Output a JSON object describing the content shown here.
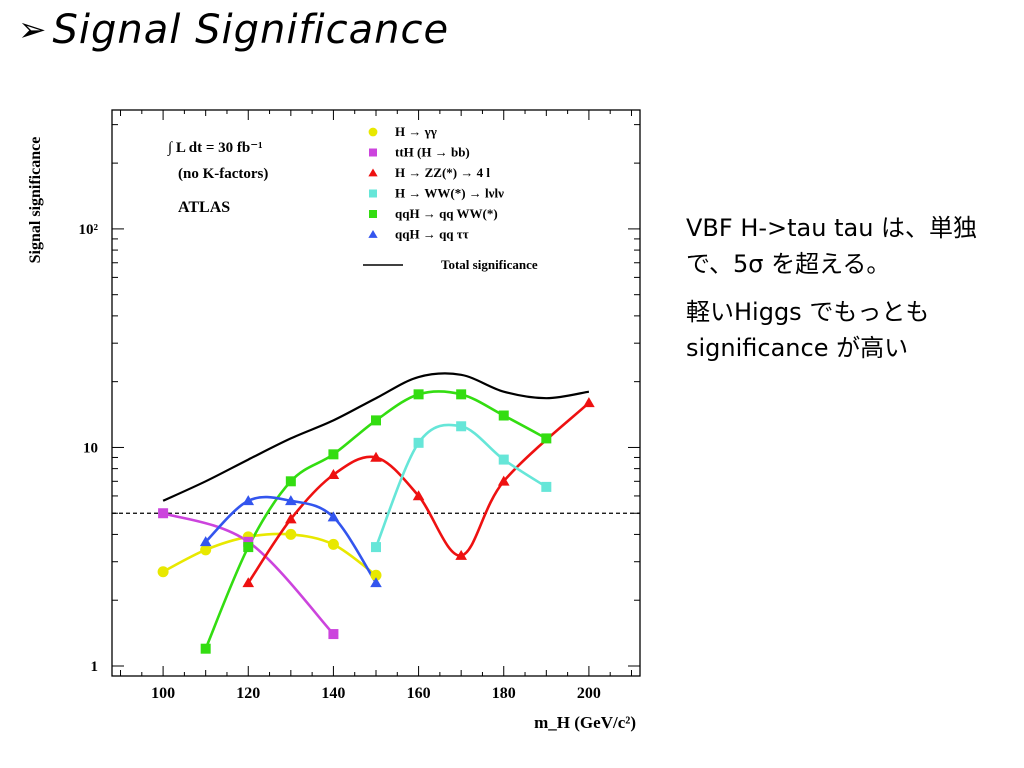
{
  "slide": {
    "bullet_glyph": "➢",
    "title": "Signal Significance",
    "notes": [
      "VBF H->tau tau は、単独で、5σ を超える。",
      "軽いHiggs でもっともsignificance が高い"
    ]
  },
  "legend_box": {
    "lumi": "∫ L dt = 30 fb⁻¹",
    "kfactor": "(no K-factors)",
    "experiment": "ATLAS"
  },
  "chart_data": {
    "type": "line",
    "xlabel": "m_H (GeV/c²)",
    "ylabel": "Signal significance",
    "y_scale": "log",
    "xlim": [
      88,
      212
    ],
    "ylim": [
      0.9,
      350
    ],
    "xticks": [
      100,
      120,
      140,
      160,
      180,
      200
    ],
    "yticks": [
      {
        "value": 1,
        "label": "1"
      },
      {
        "value": 10,
        "label": "10"
      },
      {
        "value": 100,
        "label": "10²"
      }
    ],
    "grid": false,
    "legend_position": "top-right",
    "reference_line": {
      "y": 5,
      "style": "dashed"
    },
    "series": [
      {
        "name": "H → γγ",
        "marker": "circle",
        "color": "#e8e800",
        "points": [
          [
            100,
            2.7
          ],
          [
            110,
            3.4
          ],
          [
            120,
            3.9
          ],
          [
            130,
            4.0
          ],
          [
            140,
            3.6
          ],
          [
            150,
            2.6
          ]
        ]
      },
      {
        "name": "ttH (H → bb)",
        "marker": "square",
        "color": "#cc44dd",
        "points": [
          [
            100,
            5.0
          ],
          [
            120,
            3.7
          ],
          [
            140,
            1.4
          ]
        ]
      },
      {
        "name": "H → ZZ(*) → 4 l",
        "marker": "triangle",
        "color": "#ee1111",
        "points": [
          [
            120,
            2.4
          ],
          [
            130,
            4.7
          ],
          [
            140,
            7.5
          ],
          [
            150,
            9.0
          ],
          [
            160,
            6.0
          ],
          [
            170,
            3.2
          ],
          [
            180,
            7.0
          ],
          [
            200,
            16.0
          ]
        ]
      },
      {
        "name": "H → WW(*) → lνlν",
        "marker": "square",
        "color": "#66e6d8",
        "points": [
          [
            150,
            3.5
          ],
          [
            160,
            10.5
          ],
          [
            170,
            12.5
          ],
          [
            180,
            8.8
          ],
          [
            190,
            6.6
          ]
        ]
      },
      {
        "name": "qqH → qq WW(*)",
        "marker": "square",
        "color": "#33dd11",
        "points": [
          [
            110,
            1.2
          ],
          [
            120,
            3.5
          ],
          [
            130,
            7.0
          ],
          [
            140,
            9.3
          ],
          [
            150,
            13.3
          ],
          [
            160,
            17.5
          ],
          [
            170,
            17.5
          ],
          [
            180,
            14.0
          ],
          [
            190,
            11.0
          ]
        ]
      },
      {
        "name": "qqH → qq ττ",
        "marker": "triangle",
        "color": "#3355ee",
        "points": [
          [
            110,
            3.7
          ],
          [
            120,
            5.7
          ],
          [
            130,
            5.7
          ],
          [
            140,
            4.8
          ],
          [
            150,
            2.4
          ]
        ]
      },
      {
        "name": "Total significance",
        "marker": "none",
        "color": "#000000",
        "points": [
          [
            100,
            5.7
          ],
          [
            110,
            7.0
          ],
          [
            120,
            8.8
          ],
          [
            130,
            11.0
          ],
          [
            140,
            13.3
          ],
          [
            150,
            16.8
          ],
          [
            160,
            21.0
          ],
          [
            170,
            21.5
          ],
          [
            180,
            18.0
          ],
          [
            190,
            16.8
          ],
          [
            200,
            18.0
          ]
        ]
      }
    ]
  }
}
